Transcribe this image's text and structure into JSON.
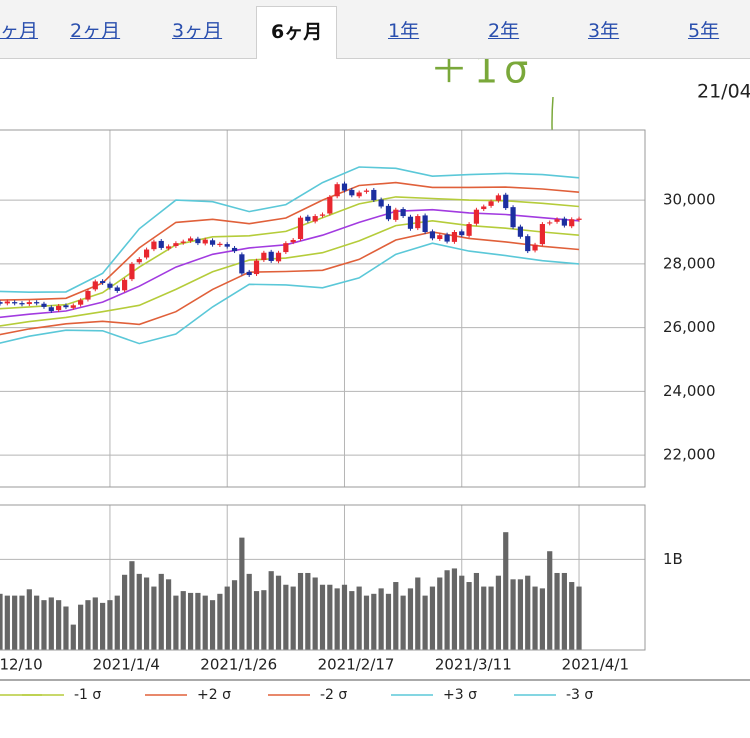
{
  "tabs": {
    "items": [
      "ヶ月",
      "2ヶ月",
      "3ヶ月",
      "6ヶ月",
      "1年",
      "2年",
      "3年",
      "5年"
    ],
    "active": 3
  },
  "header_date": "21/04",
  "annotation": {
    "text": "＋1σ",
    "color": "#7aa83a"
  },
  "chart_data": [
    {
      "type": "candlestick",
      "x": [
        0,
        1,
        2,
        3,
        4,
        5,
        6,
        7,
        8,
        9,
        10,
        11,
        12,
        13,
        14,
        15,
        16,
        17,
        18,
        19,
        20,
        21,
        22,
        23,
        24,
        25,
        26,
        27,
        28,
        29,
        30,
        31,
        32,
        33,
        34,
        35,
        36,
        37,
        38,
        39,
        40,
        41,
        42,
        43,
        44,
        45,
        46,
        47,
        48,
        49,
        50,
        51,
        52,
        53,
        54,
        55,
        56,
        57,
        58,
        59,
        60,
        61,
        62,
        63,
        64,
        65,
        66,
        67,
        68,
        69,
        70,
        71,
        72,
        73,
        74,
        75,
        76,
        77,
        78,
        79,
        80
      ],
      "open": [
        26750,
        26800,
        26760,
        26800,
        26770,
        26740,
        26800,
        26750,
        26640,
        26550,
        26700,
        26620,
        26720,
        26880,
        27200,
        27460,
        27380,
        27260,
        27170,
        27520,
        28050,
        28200,
        28460,
        28720,
        28480,
        28560,
        28660,
        28720,
        28790,
        28640,
        28740,
        28590,
        28620,
        28500,
        28300,
        27750,
        27680,
        28120,
        28380,
        28080,
        28370,
        28680,
        28780,
        29480,
        29330,
        29510,
        29580,
        30120,
        30520,
        30320,
        30120,
        30260,
        30320,
        30020,
        29820,
        29380,
        29720,
        29480,
        29120,
        29520,
        29020,
        28780,
        28920,
        28690,
        29020,
        28880,
        29260,
        29720,
        29820,
        29980,
        30170,
        29780,
        29170,
        28870,
        28420,
        28620,
        29270,
        29320,
        29420,
        29180,
        29380
      ],
      "high": [
        26860,
        26860,
        26880,
        26860,
        26830,
        26860,
        26860,
        26810,
        26700,
        26740,
        26760,
        26760,
        26920,
        27210,
        27510,
        27520,
        27440,
        27320,
        27560,
        28060,
        28210,
        28510,
        28760,
        28780,
        28610,
        28710,
        28760,
        28860,
        28850,
        28820,
        28800,
        28690,
        28680,
        28560,
        28360,
        27810,
        28160,
        28410,
        28440,
        28410,
        28710,
        28810,
        29510,
        29540,
        29560,
        29610,
        30160,
        30560,
        30580,
        30380,
        30300,
        30360,
        30380,
        30080,
        29880,
        29760,
        29780,
        29540,
        29560,
        29580,
        29080,
        28960,
        28980,
        29060,
        29080,
        29310,
        29760,
        29860,
        30020,
        30210,
        30230,
        29840,
        29230,
        28930,
        28660,
        29310,
        29360,
        29460,
        29480,
        29460,
        29480
      ],
      "low": [
        26690,
        26690,
        26700,
        26700,
        26670,
        26680,
        26700,
        26590,
        26460,
        26490,
        26580,
        26560,
        26660,
        26820,
        27140,
        27340,
        27190,
        27090,
        27110,
        27460,
        27990,
        28140,
        28400,
        28440,
        28420,
        28500,
        28600,
        28660,
        28590,
        28580,
        28540,
        28530,
        28480,
        28340,
        27640,
        27590,
        27620,
        28060,
        28030,
        28020,
        28310,
        28620,
        28720,
        29290,
        29270,
        29450,
        29520,
        30060,
        30240,
        30090,
        30060,
        30200,
        29940,
        29740,
        29340,
        29320,
        29440,
        29040,
        29060,
        28940,
        28740,
        28720,
        28640,
        28630,
        28840,
        28820,
        29200,
        29660,
        29760,
        29920,
        29690,
        29090,
        28790,
        28340,
        28360,
        28560,
        29210,
        29260,
        29140,
        29120,
        29320
      ],
      "close": [
        26800,
        26750,
        26820,
        26760,
        26730,
        26800,
        26760,
        26650,
        26520,
        26680,
        26640,
        26700,
        26860,
        27150,
        27450,
        27400,
        27250,
        27150,
        27500,
        28000,
        28150,
        28450,
        28700,
        28500,
        28550,
        28650,
        28700,
        28800,
        28650,
        28760,
        28600,
        28630,
        28540,
        28400,
        27700,
        27650,
        28100,
        28350,
        28090,
        28350,
        28650,
        28750,
        29450,
        29350,
        29500,
        29550,
        30100,
        30500,
        30300,
        30150,
        30240,
        30300,
        30000,
        29800,
        29400,
        29700,
        29500,
        29100,
        29500,
        29000,
        28800,
        28900,
        28700,
        29000,
        28900,
        29250,
        29700,
        29800,
        29960,
        30150,
        29750,
        29150,
        28850,
        28400,
        28600,
        29250,
        29300,
        29400,
        29200,
        29400,
        29420
      ],
      "up_color": "#e8272f",
      "down_color": "#1c2fa0",
      "xlim": [
        1,
        89
      ],
      "xticks": [
        0,
        16,
        32,
        48,
        64,
        80
      ],
      "ylim": [
        21000,
        32200
      ],
      "yticks": [
        {
          "value": 22000,
          "label": "22,000"
        },
        {
          "value": 24000,
          "label": "24,000"
        },
        {
          "value": 26000,
          "label": "26,000"
        },
        {
          "value": 28000,
          "label": "28,000"
        },
        {
          "value": 30000,
          "label": "30,000"
        }
      ],
      "grid": true,
      "bands": {
        "x": [
          0,
          5,
          10,
          15,
          20,
          25,
          30,
          35,
          40,
          45,
          50,
          55,
          60,
          65,
          70,
          75,
          80
        ],
        "series": [
          {
            "color": "#a23be0",
            "values": [
              26300,
              26420,
              26520,
              26800,
              27300,
              27900,
              28300,
              28500,
              28600,
              28900,
              29300,
              29650,
              29700,
              29600,
              29550,
              29450,
              29350
            ]
          },
          {
            "color": "#b5cc3a",
            "values": [
              26580,
              26650,
              26720,
              27100,
              27900,
              28600,
              28850,
              28880,
              29020,
              29450,
              29880,
              30100,
              30050,
              30000,
              29980,
              29900,
              29800
            ]
          },
          {
            "name": "-1 σ",
            "color": "#b5cc3a",
            "values": [
              26020,
              26190,
              26320,
              26500,
              26700,
              27200,
              27750,
              28120,
              28180,
              28350,
              28720,
              29200,
              29350,
              29200,
              29120,
              29000,
              28900
            ]
          },
          {
            "name": "+2 σ",
            "color": "#e0603a",
            "values": [
              26860,
              26880,
              26920,
              27400,
              28500,
              29300,
              29400,
              29260,
              29440,
              30000,
              30460,
              30550,
              30400,
              30400,
              30410,
              30350,
              30250
            ]
          },
          {
            "name": "-2 σ",
            "color": "#e0603a",
            "values": [
              25740,
              25960,
              26120,
              26200,
              26100,
              26500,
              27200,
              27740,
              27760,
              27800,
              28140,
              28750,
              29000,
              28800,
              28690,
              28550,
              28450
            ]
          },
          {
            "name": "+3 σ",
            "color": "#5bc8d8",
            "values": [
              27140,
              27110,
              27120,
              27700,
              29100,
              30000,
              29950,
              29640,
              29860,
              30550,
              31040,
              31000,
              30750,
              30800,
              30840,
              30800,
              30700
            ]
          },
          {
            "name": "-3 σ",
            "color": "#5bc8d8",
            "values": [
              25460,
              25730,
              25920,
              25900,
              25500,
              25800,
              26650,
              27360,
              27340,
              27250,
              27560,
              28300,
              28650,
              28400,
              28260,
              28100,
              28000
            ]
          }
        ]
      },
      "legend": "bottom"
    },
    {
      "type": "bar",
      "x": [
        0,
        1,
        2,
        3,
        4,
        5,
        6,
        7,
        8,
        9,
        10,
        11,
        12,
        13,
        14,
        15,
        16,
        17,
        18,
        19,
        20,
        21,
        22,
        23,
        24,
        25,
        26,
        27,
        28,
        29,
        30,
        31,
        32,
        33,
        34,
        35,
        36,
        37,
        38,
        39,
        40,
        41,
        42,
        43,
        44,
        45,
        46,
        47,
        48,
        49,
        50,
        51,
        52,
        53,
        54,
        55,
        56,
        57,
        58,
        59,
        60,
        61,
        62,
        63,
        64,
        65,
        66,
        67,
        68,
        69,
        70,
        71,
        72,
        73,
        74,
        75,
        76,
        77,
        78,
        79,
        80
      ],
      "values": [
        0.65,
        0.62,
        0.6,
        0.6,
        0.6,
        0.67,
        0.6,
        0.55,
        0.58,
        0.55,
        0.48,
        0.28,
        0.5,
        0.55,
        0.58,
        0.52,
        0.55,
        0.6,
        0.83,
        0.98,
        0.84,
        0.8,
        0.7,
        0.84,
        0.78,
        0.6,
        0.65,
        0.63,
        0.63,
        0.6,
        0.55,
        0.62,
        0.7,
        0.77,
        1.24,
        0.84,
        0.65,
        0.66,
        0.87,
        0.82,
        0.72,
        0.7,
        0.85,
        0.85,
        0.8,
        0.72,
        0.72,
        0.68,
        0.72,
        0.65,
        0.7,
        0.6,
        0.62,
        0.68,
        0.62,
        0.75,
        0.6,
        0.68,
        0.8,
        0.6,
        0.7,
        0.8,
        0.88,
        0.9,
        0.82,
        0.75,
        0.85,
        0.7,
        0.7,
        0.82,
        1.3,
        0.78,
        0.78,
        0.82,
        0.7,
        0.68,
        1.09,
        0.85,
        0.85,
        0.75,
        0.7
      ],
      "color": "#666666",
      "xlim": [
        1,
        89
      ],
      "xticks": [
        {
          "value": 0,
          "label": "12/10"
        },
        {
          "value": 16,
          "label": "2021/1/4"
        },
        {
          "value": 32,
          "label": "2021/1/26"
        },
        {
          "value": 48,
          "label": "2021/2/17"
        },
        {
          "value": 64,
          "label": "2021/3/11"
        },
        {
          "value": 80,
          "label": "2021/4/1"
        }
      ],
      "ylim": [
        0,
        1.6
      ],
      "yticks": [
        {
          "value": 1,
          "label": "1B"
        }
      ],
      "grid": true
    }
  ]
}
